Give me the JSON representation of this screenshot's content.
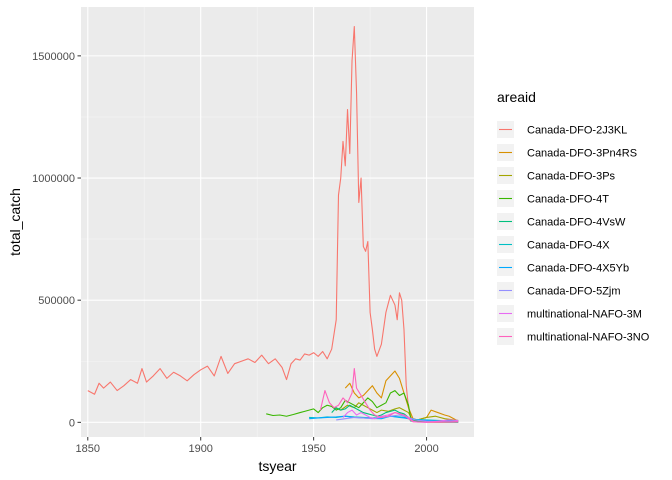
{
  "chart_data": {
    "type": "line",
    "title": "",
    "xlabel": "tsyear",
    "ylabel": "total_catch",
    "xlim": [
      1847,
      2021
    ],
    "ylim": [
      -60000,
      1700000
    ],
    "x_ticks": [
      1850,
      1900,
      1950,
      2000
    ],
    "y_ticks": [
      0,
      500000,
      1000000,
      1500000
    ],
    "x_tick_labels": [
      "1850",
      "1900",
      "1950",
      "2000"
    ],
    "y_tick_labels": [
      "0",
      "500000",
      "1000000",
      "1500000"
    ],
    "grid": true,
    "legend": {
      "title": "areaid",
      "placement": "right"
    },
    "series": [
      {
        "name": "Canada-DFO-2J3KL",
        "color": "#F8766D",
        "x": [
          1850,
          1853,
          1855,
          1857,
          1860,
          1863,
          1866,
          1869,
          1872,
          1874,
          1876,
          1879,
          1882,
          1885,
          1888,
          1891,
          1894,
          1897,
          1900,
          1903,
          1906,
          1909,
          1912,
          1915,
          1918,
          1921,
          1924,
          1927,
          1930,
          1933,
          1936,
          1938,
          1940,
          1942,
          1944,
          1946,
          1948,
          1950,
          1952,
          1954,
          1956,
          1958,
          1960,
          1961,
          1962,
          1963,
          1964,
          1965,
          1966,
          1967,
          1968,
          1969,
          1970,
          1971,
          1972,
          1973,
          1974,
          1975,
          1976,
          1977,
          1978,
          1980,
          1982,
          1984,
          1986,
          1987,
          1988,
          1989,
          1990,
          1991,
          1992,
          1993,
          1994,
          2000,
          2005,
          2010,
          2014
        ],
        "values": [
          130000,
          115000,
          160000,
          140000,
          165000,
          130000,
          150000,
          175000,
          160000,
          220000,
          165000,
          190000,
          220000,
          180000,
          205000,
          190000,
          170000,
          195000,
          215000,
          230000,
          190000,
          270000,
          200000,
          240000,
          250000,
          260000,
          245000,
          275000,
          240000,
          260000,
          225000,
          175000,
          240000,
          260000,
          255000,
          280000,
          275000,
          285000,
          270000,
          290000,
          260000,
          300000,
          420000,
          930000,
          1000000,
          1150000,
          1050000,
          1280000,
          1100000,
          1480000,
          1620000,
          1350000,
          900000,
          1000000,
          720000,
          700000,
          740000,
          450000,
          380000,
          300000,
          270000,
          320000,
          450000,
          520000,
          480000,
          420000,
          530000,
          500000,
          380000,
          150000,
          60000,
          20000,
          5000,
          0,
          0,
          0,
          0
        ]
      },
      {
        "name": "Canada-DFO-3Pn4RS",
        "color": "#D89000",
        "x": [
          1964,
          1966,
          1968,
          1970,
          1972,
          1974,
          1976,
          1978,
          1980,
          1982,
          1984,
          1986,
          1988,
          1990,
          1992,
          1994,
          1996,
          2000,
          2002,
          2005,
          2008,
          2010,
          2014
        ],
        "values": [
          140000,
          160000,
          120000,
          100000,
          110000,
          130000,
          150000,
          120000,
          100000,
          170000,
          190000,
          210000,
          180000,
          120000,
          60000,
          15000,
          10000,
          20000,
          50000,
          40000,
          30000,
          25000,
          5000
        ]
      },
      {
        "name": "Canada-DFO-3Ps",
        "color": "#A3A500",
        "x": [
          1959,
          1962,
          1965,
          1968,
          1970,
          1972,
          1974,
          1976,
          1978,
          1980,
          1983,
          1986,
          1988,
          1990,
          1992,
          1994,
          1996,
          2000,
          2004,
          2008,
          2012,
          2014
        ],
        "values": [
          60000,
          50000,
          70000,
          60000,
          80000,
          70000,
          60000,
          50000,
          40000,
          50000,
          45000,
          55000,
          60000,
          50000,
          40000,
          5000,
          10000,
          20000,
          25000,
          15000,
          10000,
          8000
        ]
      },
      {
        "name": "Canada-DFO-4T",
        "color": "#39B600",
        "x": [
          1929,
          1932,
          1935,
          1938,
          1941,
          1944,
          1946,
          1948,
          1950,
          1952,
          1954,
          1956,
          1958,
          1960,
          1962,
          1964,
          1966,
          1968,
          1970,
          1972,
          1974,
          1976,
          1978,
          1980,
          1982,
          1984,
          1986,
          1988,
          1990,
          1992,
          1993,
          1996,
          2000,
          2005,
          2010,
          2014
        ],
        "values": [
          35000,
          28000,
          30000,
          25000,
          32000,
          40000,
          45000,
          50000,
          55000,
          40000,
          60000,
          70000,
          65000,
          50000,
          60000,
          90000,
          80000,
          70000,
          60000,
          80000,
          100000,
          85000,
          60000,
          70000,
          80000,
          120000,
          130000,
          110000,
          120000,
          70000,
          15000,
          5000,
          3000,
          2000,
          2000,
          1000
        ]
      },
      {
        "name": "Canada-DFO-4VsW",
        "color": "#00BF7D",
        "x": [
          1958,
          1960,
          1962,
          1964,
          1966,
          1968,
          1970,
          1972,
          1974,
          1976,
          1978,
          1980,
          1982,
          1984,
          1986,
          1988,
          1990,
          1992,
          1993,
          1996,
          2000,
          2005,
          2010,
          2014
        ],
        "values": [
          40000,
          60000,
          50000,
          55000,
          70000,
          60000,
          50000,
          40000,
          35000,
          30000,
          25000,
          30000,
          40000,
          45000,
          50000,
          40000,
          35000,
          20000,
          5000,
          3000,
          2000,
          1000,
          1000,
          1000
        ]
      },
      {
        "name": "Canada-DFO-4X",
        "color": "#00BFC4",
        "x": [
          1948,
          1952,
          1956,
          1960,
          1964,
          1968,
          1972,
          1976,
          1980,
          1984,
          1988,
          1990,
          1992,
          1995,
          2000,
          2005,
          2010,
          2014
        ],
        "values": [
          20000,
          18000,
          22000,
          20000,
          25000,
          22000,
          20000,
          18000,
          20000,
          25000,
          22000,
          20000,
          18000,
          12000,
          10000,
          8000,
          6000,
          5000
        ]
      },
      {
        "name": "Canada-DFO-4X5Yb",
        "color": "#00A9FF",
        "x": [
          1948,
          1952,
          1956,
          1960,
          1964,
          1968,
          1972,
          1976,
          1980,
          1984,
          1988,
          1990,
          1992,
          1995,
          2000,
          2005,
          2010,
          2014
        ],
        "values": [
          15000,
          18000,
          20000,
          22000,
          25000,
          20000,
          18000,
          16000,
          15000,
          25000,
          20000,
          18000,
          15000,
          10000,
          8000,
          5000,
          4000,
          3000
        ]
      },
      {
        "name": "Canada-DFO-5Zjm",
        "color": "#9590FF",
        "x": [
          1960,
          1964,
          1968,
          1972,
          1976,
          1980,
          1984,
          1988,
          1990,
          1992,
          1995,
          2000,
          2005,
          2010,
          2014
        ],
        "values": [
          10000,
          15000,
          20000,
          18000,
          15000,
          20000,
          25000,
          30000,
          25000,
          20000,
          10000,
          5000,
          3000,
          2000,
          2000
        ]
      },
      {
        "name": "multinational-NAFO-3M",
        "color": "#E76BF3",
        "x": [
          1963,
          1965,
          1967,
          1969,
          1971,
          1973,
          1975,
          1977,
          1980,
          1983,
          1986,
          1988,
          1990,
          1992,
          1994,
          1996,
          2000,
          2005,
          2010,
          2014
        ],
        "values": [
          20000,
          40000,
          50000,
          30000,
          40000,
          30000,
          20000,
          15000,
          25000,
          30000,
          40000,
          35000,
          30000,
          20000,
          5000,
          1000,
          0,
          5000,
          10000,
          8000
        ]
      },
      {
        "name": "multinational-NAFO-3NO",
        "color": "#FF62BC",
        "x": [
          1953,
          1955,
          1957,
          1959,
          1961,
          1963,
          1965,
          1967,
          1968,
          1969,
          1971,
          1973,
          1975,
          1977,
          1980,
          1983,
          1986,
          1988,
          1990,
          1992,
          1994,
          2000,
          2005,
          2010,
          2014
        ],
        "values": [
          50000,
          130000,
          80000,
          60000,
          70000,
          100000,
          80000,
          120000,
          220000,
          140000,
          110000,
          80000,
          50000,
          30000,
          20000,
          25000,
          40000,
          35000,
          30000,
          15000,
          2000,
          1000,
          1000,
          2000,
          3000
        ]
      }
    ]
  }
}
